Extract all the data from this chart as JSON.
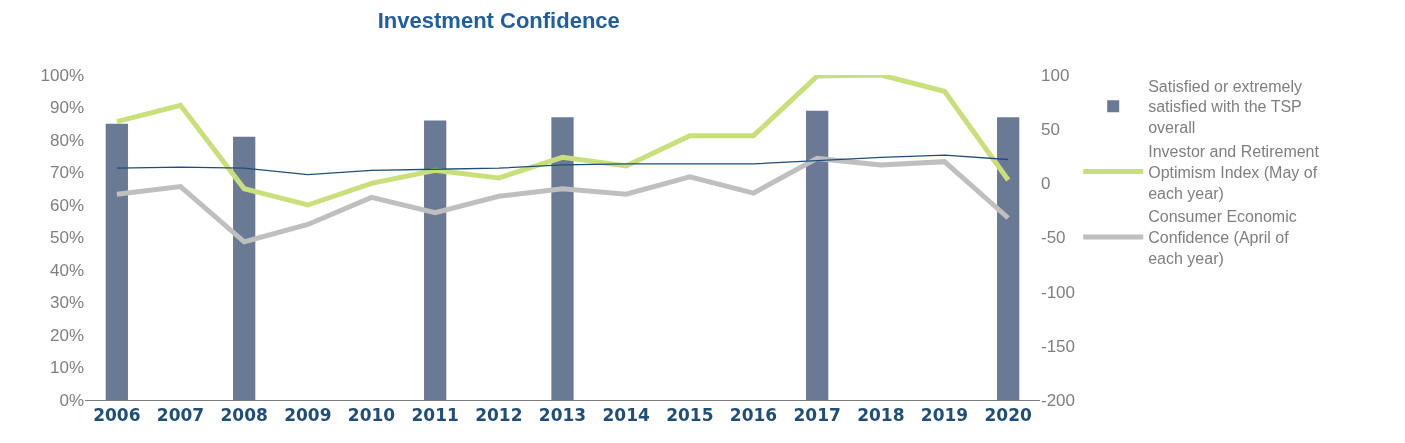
{
  "chart_data": {
    "type": "bar",
    "title": "Investment Confidence",
    "categories": [
      "2006",
      "2007",
      "2008",
      "2009",
      "2010",
      "2011",
      "2012",
      "2013",
      "2014",
      "2015",
      "2016",
      "2017",
      "2018",
      "2019",
      "2020"
    ],
    "series": [
      {
        "name": "Satisfied or extremely satisfied with the TSP overall",
        "color": "#6b7a94",
        "values": [
          85,
          null,
          81,
          null,
          null,
          86,
          null,
          87,
          null,
          null,
          null,
          89,
          null,
          null,
          87
        ]
      },
      {
        "name": "Investor and Retirement Optimism Index (May of each year)",
        "type": "line",
        "axis": "y2",
        "color": "#c9e07a",
        "values": [
          57,
          72,
          -5,
          -20,
          0,
          12,
          5,
          24,
          16,
          44,
          44,
          99,
          100,
          85,
          3
        ]
      },
      {
        "name": "Consumer Economic Confidence (April of each year)",
        "type": "line",
        "axis": "y2",
        "color": "#bfbfbf",
        "values": [
          -10,
          -3,
          -54,
          -38,
          -13,
          -27,
          -12,
          -5,
          -10,
          6,
          -9,
          23,
          17,
          20,
          -32
        ]
      },
      {
        "type": "line",
        "axis": "y2",
        "color": "#1f4e79",
        "values": [
          14,
          15,
          14,
          8,
          12,
          13,
          14,
          17,
          18,
          18,
          18,
          21,
          24,
          26,
          22
        ]
      }
    ],
    "ylim": [
      0,
      100
    ],
    "yticks": [
      {
        "value": 0,
        "label": "0%"
      },
      {
        "value": 10,
        "label": "10%"
      },
      {
        "value": 20,
        "label": "20%"
      },
      {
        "value": 30,
        "label": "30%"
      },
      {
        "value": 40,
        "label": "40%"
      },
      {
        "value": 50,
        "label": "50%"
      },
      {
        "value": 60,
        "label": "60%"
      },
      {
        "value": 70,
        "label": "70%"
      },
      {
        "value": 80,
        "label": "80%"
      },
      {
        "value": 90,
        "label": "90%"
      },
      {
        "value": 100,
        "label": "100%"
      }
    ],
    "y2lim": [
      -200,
      100
    ],
    "y2ticks": [
      -200,
      -150,
      -100,
      -50,
      0,
      50,
      100
    ],
    "grid": false,
    "legend": "right",
    "marker": "none"
  }
}
